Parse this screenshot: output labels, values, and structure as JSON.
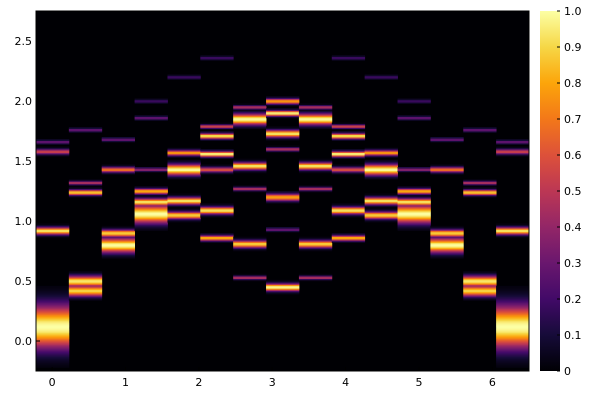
{
  "chart_data": {
    "type": "heatmap",
    "title": "",
    "xlabel": "",
    "ylabel": "",
    "xlim": [
      -0.22,
      6.5
    ],
    "ylim": [
      -0.25,
      2.75
    ],
    "x_ticks": [
      0,
      1,
      2,
      3,
      4,
      5,
      6
    ],
    "x_tick_labels": [
      "0",
      "1",
      "2",
      "3",
      "4",
      "5",
      "6"
    ],
    "y_ticks": [
      0.0,
      0.5,
      1.0,
      1.5,
      2.0,
      2.5
    ],
    "y_tick_labels": [
      "0.0",
      "0.5",
      "1.0",
      "1.5",
      "2.0",
      "2.5"
    ],
    "colorbar": {
      "colormap": "inferno",
      "range": [
        0,
        1
      ],
      "ticks": [
        0,
        0.1,
        0.2,
        0.3,
        0.4,
        0.5,
        0.6,
        0.7,
        0.8,
        0.9,
        1.0
      ],
      "tick_labels": [
        "0",
        "0.1",
        "0.2",
        "0.3",
        "0.4",
        "0.5",
        "0.6",
        "0.7",
        "0.8",
        "0.9",
        "1.0"
      ]
    },
    "columns": [
      {
        "x": 0.0,
        "peaks": [
          [
            0.12,
            1.0,
            0.12
          ],
          [
            0.92,
            0.95,
            0.02
          ],
          [
            1.58,
            0.55,
            0.015
          ],
          [
            1.66,
            0.3,
            0.01
          ]
        ]
      },
      {
        "x": 0.45,
        "peaks": [
          [
            0.42,
            0.9,
            0.03
          ],
          [
            0.5,
            0.95,
            0.03
          ],
          [
            1.24,
            0.9,
            0.015
          ],
          [
            1.32,
            0.5,
            0.01
          ],
          [
            1.76,
            0.3,
            0.01
          ]
        ]
      },
      {
        "x": 0.9,
        "peaks": [
          [
            0.8,
            1.0,
            0.04
          ],
          [
            0.9,
            0.9,
            0.02
          ],
          [
            1.43,
            0.7,
            0.015
          ],
          [
            1.68,
            0.3,
            0.01
          ]
        ]
      },
      {
        "x": 1.35,
        "peaks": [
          [
            1.06,
            1.0,
            0.05
          ],
          [
            1.16,
            0.95,
            0.02
          ],
          [
            1.25,
            0.85,
            0.015
          ],
          [
            1.43,
            0.4,
            0.01
          ],
          [
            1.86,
            0.3,
            0.01
          ],
          [
            2.0,
            0.2,
            0.01
          ]
        ]
      },
      {
        "x": 1.8,
        "peaks": [
          [
            1.05,
            0.9,
            0.02
          ],
          [
            1.17,
            0.95,
            0.02
          ],
          [
            1.43,
            1.0,
            0.03
          ],
          [
            1.57,
            0.8,
            0.015
          ],
          [
            2.2,
            0.2,
            0.01
          ]
        ]
      },
      {
        "x": 2.25,
        "peaks": [
          [
            0.86,
            0.85,
            0.015
          ],
          [
            1.09,
            0.95,
            0.02
          ],
          [
            1.43,
            0.6,
            0.015
          ],
          [
            1.56,
            1.0,
            0.015
          ],
          [
            1.71,
            0.95,
            0.015
          ],
          [
            1.79,
            0.6,
            0.01
          ],
          [
            2.36,
            0.2,
            0.01
          ]
        ]
      },
      {
        "x": 2.7,
        "peaks": [
          [
            0.53,
            0.5,
            0.01
          ],
          [
            0.81,
            0.9,
            0.02
          ],
          [
            1.27,
            0.5,
            0.01
          ],
          [
            1.46,
            0.95,
            0.02
          ],
          [
            1.85,
            1.0,
            0.03
          ],
          [
            1.95,
            0.5,
            0.01
          ]
        ]
      },
      {
        "x": 3.15,
        "peaks": [
          [
            0.45,
            1.0,
            0.02
          ],
          [
            0.93,
            0.3,
            0.01
          ],
          [
            1.2,
            0.8,
            0.02
          ],
          [
            1.6,
            0.5,
            0.01
          ],
          [
            1.73,
            0.95,
            0.02
          ],
          [
            1.9,
            1.0,
            0.015
          ],
          [
            2.0,
            0.8,
            0.015
          ]
        ]
      },
      {
        "x": 3.6,
        "peaks": [
          [
            0.53,
            0.5,
            0.01
          ],
          [
            0.81,
            0.9,
            0.02
          ],
          [
            1.27,
            0.5,
            0.01
          ],
          [
            1.46,
            0.95,
            0.02
          ],
          [
            1.85,
            1.0,
            0.03
          ],
          [
            1.95,
            0.5,
            0.01
          ]
        ]
      },
      {
        "x": 4.05,
        "peaks": [
          [
            0.86,
            0.85,
            0.015
          ],
          [
            1.09,
            0.95,
            0.02
          ],
          [
            1.43,
            0.6,
            0.015
          ],
          [
            1.56,
            1.0,
            0.015
          ],
          [
            1.71,
            0.95,
            0.015
          ],
          [
            1.79,
            0.6,
            0.01
          ],
          [
            2.36,
            0.2,
            0.01
          ]
        ]
      },
      {
        "x": 4.5,
        "peaks": [
          [
            1.05,
            0.9,
            0.02
          ],
          [
            1.17,
            0.95,
            0.02
          ],
          [
            1.43,
            1.0,
            0.03
          ],
          [
            1.57,
            0.8,
            0.015
          ],
          [
            2.2,
            0.2,
            0.01
          ]
        ]
      },
      {
        "x": 4.95,
        "peaks": [
          [
            1.06,
            1.0,
            0.05
          ],
          [
            1.16,
            0.95,
            0.02
          ],
          [
            1.25,
            0.85,
            0.015
          ],
          [
            1.43,
            0.4,
            0.01
          ],
          [
            1.86,
            0.3,
            0.01
          ],
          [
            2.0,
            0.2,
            0.01
          ]
        ]
      },
      {
        "x": 5.4,
        "peaks": [
          [
            0.8,
            1.0,
            0.04
          ],
          [
            0.9,
            0.9,
            0.02
          ],
          [
            1.43,
            0.7,
            0.015
          ],
          [
            1.68,
            0.3,
            0.01
          ]
        ]
      },
      {
        "x": 5.85,
        "peaks": [
          [
            0.42,
            0.9,
            0.03
          ],
          [
            0.5,
            0.95,
            0.03
          ],
          [
            1.24,
            0.9,
            0.015
          ],
          [
            1.32,
            0.5,
            0.01
          ],
          [
            1.76,
            0.3,
            0.01
          ]
        ]
      },
      {
        "x": 6.3,
        "peaks": [
          [
            0.12,
            1.0,
            0.12
          ],
          [
            0.92,
            0.95,
            0.02
          ],
          [
            1.58,
            0.55,
            0.015
          ],
          [
            1.66,
            0.3,
            0.01
          ]
        ]
      }
    ]
  }
}
